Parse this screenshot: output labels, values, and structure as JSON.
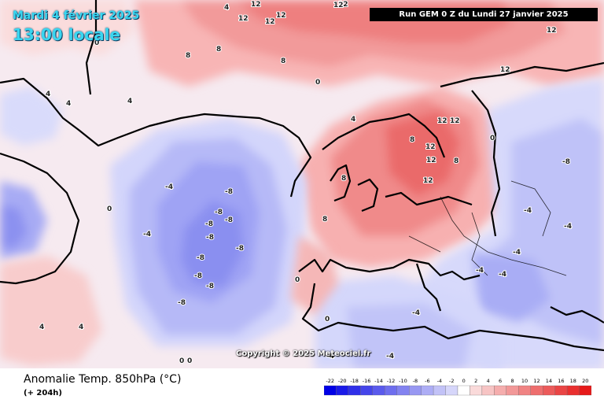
{
  "header": {
    "date": "Mardi 4 février 2025",
    "hour": "13:00 locale",
    "run": "Run GEM 0 Z du Lundi 27 janvier 2025"
  },
  "map": {
    "copyright": "Copyright © 2025 Meteociel.fr",
    "colors": {
      "cold": "#6a6ff0",
      "warm": "#f05a5a",
      "land_outline": "#000000"
    },
    "contour_labels": [
      "12",
      "12",
      "12",
      "12",
      "12",
      "12",
      "12",
      "12",
      "12",
      "12",
      "12",
      "12",
      "12",
      "8",
      "8",
      "8",
      "8",
      "8",
      "8",
      "8",
      "4",
      "4",
      "4",
      "4",
      "4",
      "4",
      "4",
      "0",
      "0",
      "0",
      "0",
      "0",
      "0",
      "0",
      "0",
      "-4",
      "-4",
      "-4",
      "-4",
      "-4",
      "-4",
      "-4",
      "-4",
      "-4",
      "-4",
      "-8",
      "-8",
      "-8",
      "-8",
      "-8",
      "-8",
      "-8",
      "-8",
      "-8",
      "-8",
      "-8"
    ]
  },
  "footer": {
    "parameter": "Anomalie Temp. 850hPa (°C)",
    "lead_time": "(+ 204h)"
  },
  "legend": {
    "ticks": [
      "-22",
      "-20",
      "-18",
      "-16",
      "-14",
      "-12",
      "-10",
      "-8",
      "-6",
      "-4",
      "-2",
      "0",
      "2",
      "4",
      "6",
      "8",
      "10",
      "12",
      "14",
      "16",
      "18",
      "20"
    ],
    "colors": [
      "#0000e6",
      "#1a1ae8",
      "#2f2fe9",
      "#4545ea",
      "#5a5aec",
      "#6e6eee",
      "#8383f0",
      "#9898f2",
      "#adadf5",
      "#c2c2f7",
      "#d6d6fa",
      "#ffffff",
      "#fadada",
      "#f7c4c4",
      "#f5adad",
      "#f29898",
      "#f08383",
      "#ee6e6e",
      "#ec5a5a",
      "#ea4545",
      "#e92f2f",
      "#e61a1a"
    ]
  }
}
